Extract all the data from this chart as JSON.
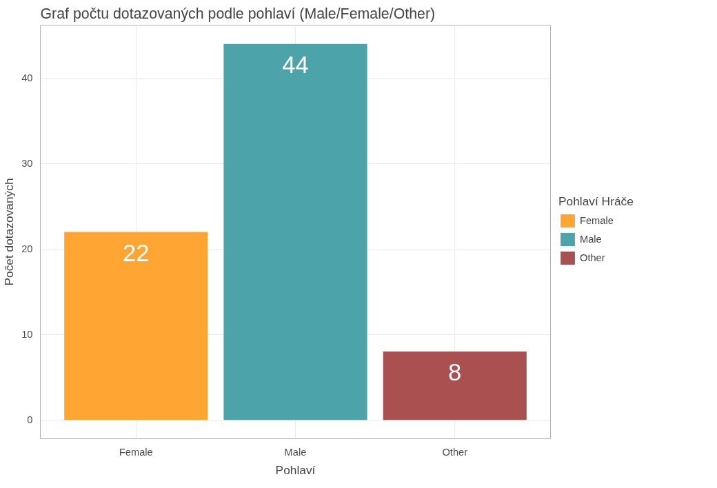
{
  "chart_data": {
    "type": "bar",
    "title": "Graf počtu dotazovaných podle pohlaví (Male/Female/Other)",
    "xlabel": "Pohlaví",
    "ylabel": "Počet dotazovaných",
    "legend_title": "Pohlaví Hráče",
    "categories": [
      "Female",
      "Male",
      "Other"
    ],
    "series": [
      {
        "name": "Female",
        "color": "#ffa533",
        "values": [
          22,
          null,
          null
        ]
      },
      {
        "name": "Male",
        "color": "#4da3aa",
        "values": [
          null,
          44,
          null
        ]
      },
      {
        "name": "Other",
        "color": "#ab5050",
        "values": [
          null,
          null,
          8
        ]
      }
    ],
    "ylim": [
      -2.2,
      46.2
    ],
    "yticks": [
      0,
      10,
      20,
      30,
      40
    ],
    "grid": true,
    "legend": "right",
    "data_labels": true
  }
}
